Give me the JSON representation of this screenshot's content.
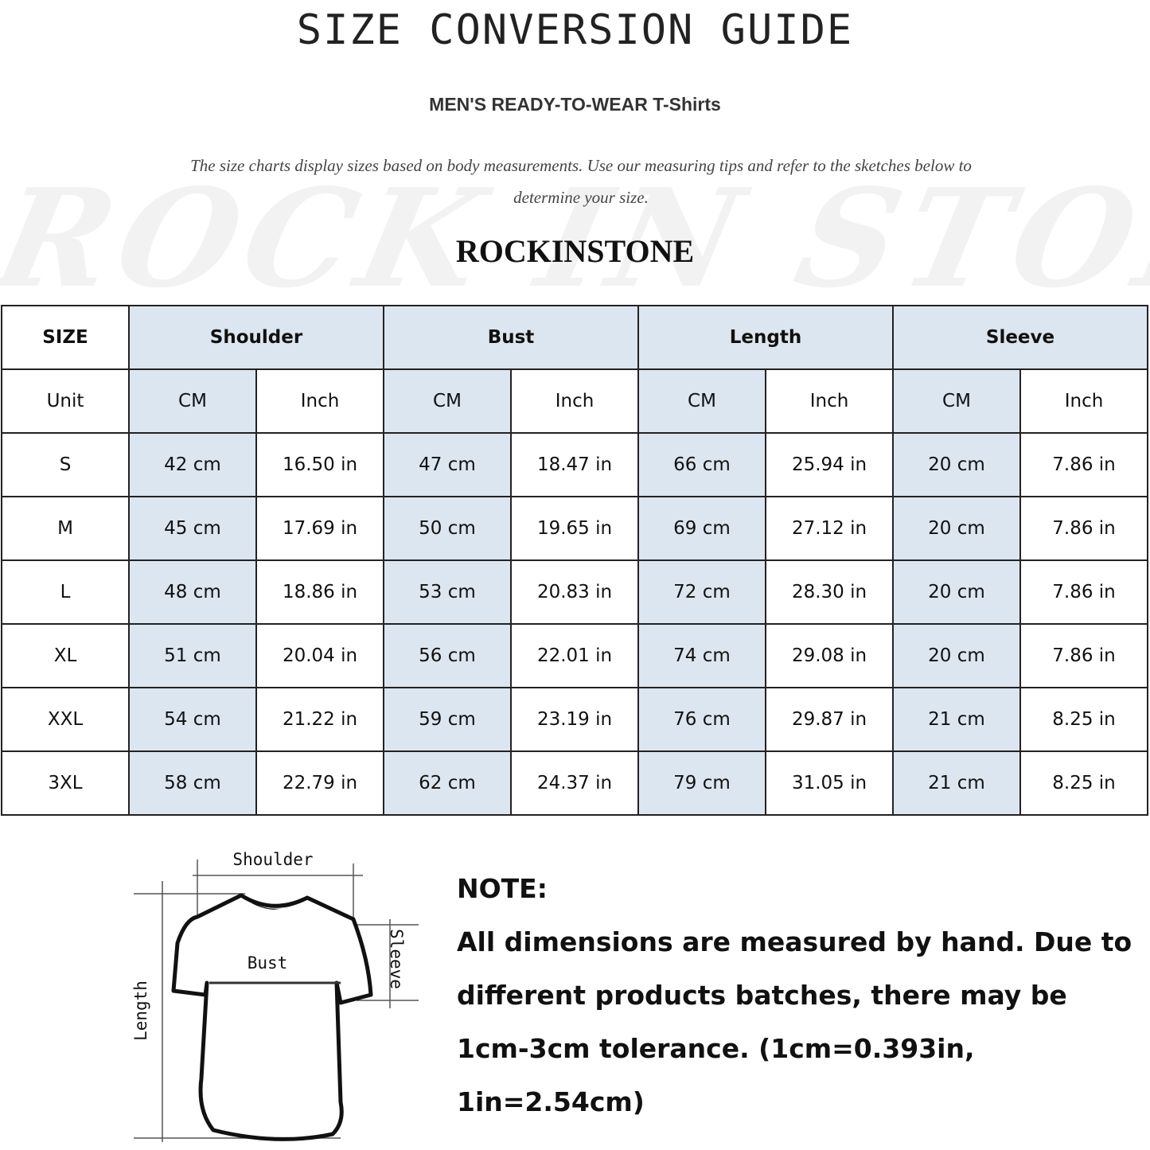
{
  "title": "SIZE CONVERSION GUIDE",
  "subtitle": "MEN'S READY-TO-WEAR T-Shirts",
  "description": "The size charts display sizes based on body measurements. Use our measuring tips and refer to the sketches below to determine your size.",
  "watermark": "ROCK IN STONE",
  "brand": "ROCKINSTONE",
  "colors": {
    "header_shade": "#dce6f1",
    "border": "#222222"
  },
  "table": {
    "size_header": "SIZE",
    "groups": [
      "Shoulder",
      "Bust",
      "Length",
      "Sleeve"
    ],
    "unit_label": "Unit",
    "units": [
      "CM",
      "Inch"
    ],
    "rows": [
      {
        "size": "S",
        "values": [
          "42 cm",
          "16.50 in",
          "47 cm",
          "18.47  in",
          "66 cm",
          "25.94  in",
          "20 cm",
          "7.86  in"
        ]
      },
      {
        "size": "M",
        "values": [
          "45 cm",
          "17.69  in",
          "50 cm",
          "19.65  in",
          "69 cm",
          "27.12  in",
          "20 cm",
          "7.86  in"
        ]
      },
      {
        "size": "L",
        "values": [
          "48 cm",
          "18.86  in",
          "53 cm",
          "20.83  in",
          "72 cm",
          "28.30  in",
          "20 cm",
          "7.86  in"
        ]
      },
      {
        "size": "XL",
        "values": [
          "51 cm",
          "20.04  in",
          "56 cm",
          "22.01  in",
          "74 cm",
          "29.08  in",
          "20 cm",
          "7.86  in"
        ]
      },
      {
        "size": "XXL",
        "values": [
          "54 cm",
          "21.22  in",
          "59 cm",
          "23.19  in",
          "76 cm",
          "29.87  in",
          "21 cm",
          "8.25  in"
        ]
      },
      {
        "size": "3XL",
        "values": [
          "58 cm",
          "22.79  in",
          "62 cm",
          "24.37  in",
          "79 cm",
          "31.05  in",
          "21 cm",
          "8.25  in"
        ]
      }
    ]
  },
  "sketch": {
    "shoulder": "Shoulder",
    "bust": "Bust",
    "length": "Length",
    "sleeve": "Sleeve"
  },
  "note": {
    "heading": "NOTE:",
    "lines": [
      "All dimensions are measured by hand. Due to",
      "different products batches, there may be",
      "1cm-3cm tolerance. (1cm=0.393in, 1in=2.54cm)"
    ]
  }
}
